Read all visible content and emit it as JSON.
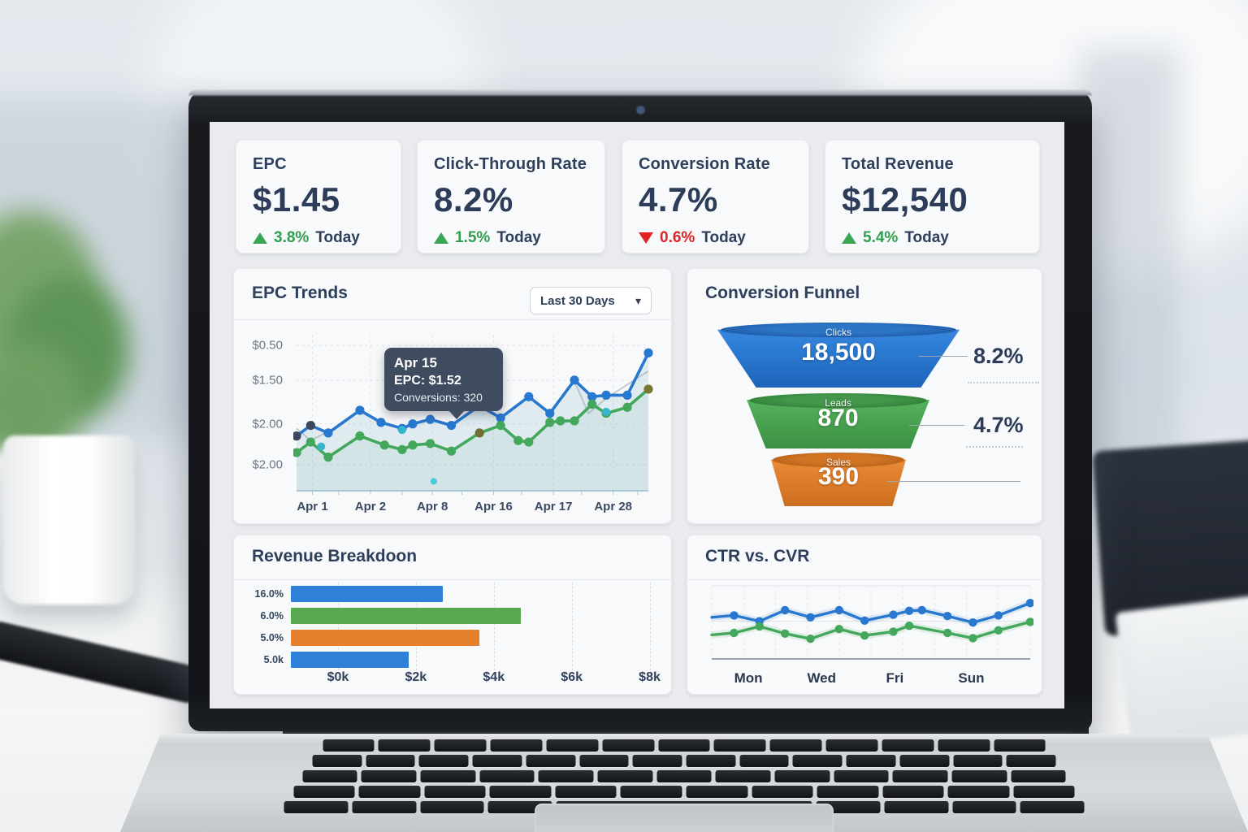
{
  "colors": {
    "accent_blue": "#2878d0",
    "accent_green": "#43a75c",
    "accent_orange": "#e5812d",
    "negative_red": "#e02424",
    "positive_green": "#2f9e4f",
    "navy_text": "#2e3f5c",
    "tooltip_bg": "#3f4b5e",
    "teal_dot": "#35b6cd"
  },
  "icons": {
    "chevron_down": "▾"
  },
  "screen": {
    "kpi_cards": [
      {
        "title": "EPC",
        "value": "$1.45",
        "delta": "3.8%",
        "direction": "up",
        "period": "Today"
      },
      {
        "title": "Click-Through Rate",
        "value": "8.2%",
        "delta": "1.5%",
        "direction": "up",
        "period": "Today"
      },
      {
        "title": "Conversion Rate",
        "value": "4.7%",
        "delta": "0.6%",
        "direction": "down",
        "period": "Today"
      },
      {
        "title": "Total Revenue",
        "value": "$12,540",
        "delta": "5.4%",
        "direction": "up",
        "period": "Today"
      }
    ],
    "epc_trends": {
      "title": "EPC Trends",
      "range_selector": "Last 30 Days",
      "tooltip": {
        "date": "Apr 15",
        "epc_line": "EPC: $1.52",
        "conversions_line": "Conversions: 320"
      }
    },
    "conversion_funnel": {
      "title": "Conversion Funnel",
      "stages": [
        {
          "label": "Clicks",
          "value": "18,500",
          "rate": "8.2%"
        },
        {
          "label": "Leads",
          "value": "870",
          "rate": "4.7%"
        },
        {
          "label": "Sales",
          "value": "390",
          "rate": ""
        }
      ]
    },
    "revenue_breakdown": {
      "title": "Revenue Breakdoon"
    },
    "ctr_cvr": {
      "title": "CTR vs. CVR"
    }
  },
  "chart_data": [
    {
      "type": "line",
      "title": "EPC Trends",
      "range": "Last 30 Days",
      "y_tick_labels_as_displayed": [
        "$0.50",
        "$1.50",
        "$2.00",
        "$2.00"
      ],
      "x_tick_labels": [
        "Apr 1",
        "Apr 2",
        "Apr 8",
        "Apr 16",
        "Apr 17",
        "Apr 28"
      ],
      "tooltip": {
        "date": "Apr 15",
        "epc": 1.52,
        "conversions": 320
      },
      "grid": true,
      "series": [
        {
          "name": "EPC",
          "color": "#2878d0",
          "area": "rgba(130,180,200,0.20)",
          "points_pct": [
            [
              0,
              67
            ],
            [
              4,
              60
            ],
            [
              9,
              65
            ],
            [
              18,
              50
            ],
            [
              24,
              58
            ],
            [
              30,
              62
            ],
            [
              33,
              59
            ],
            [
              38,
              56
            ],
            [
              44,
              60
            ],
            [
              52,
              47
            ],
            [
              58,
              55
            ],
            [
              66,
              41
            ],
            [
              72,
              52
            ],
            [
              79,
              30
            ],
            [
              84,
              41
            ],
            [
              88,
              40
            ],
            [
              94,
              40
            ],
            [
              100,
              12
            ]
          ],
          "dot_overrides": {
            "0": "#3b475f",
            "1": "#3b475f"
          }
        },
        {
          "name": "Conversions",
          "color": "#43a75c",
          "area": "rgba(110,185,145,0.12)",
          "points_pct": [
            [
              0,
              78
            ],
            [
              4,
              71
            ],
            [
              9,
              81
            ],
            [
              18,
              67
            ],
            [
              25,
              73
            ],
            [
              30,
              76
            ],
            [
              33,
              73
            ],
            [
              38,
              72
            ],
            [
              44,
              77
            ],
            [
              52,
              65
            ],
            [
              58,
              60
            ],
            [
              63,
              70
            ],
            [
              66,
              71
            ],
            [
              72,
              58
            ],
            [
              75,
              57
            ],
            [
              79,
              57
            ],
            [
              84,
              46
            ],
            [
              88,
              52
            ],
            [
              94,
              48
            ],
            [
              100,
              36
            ]
          ],
          "dot_overrides": {
            "9": "#6f7030",
            "19": "#77772f"
          }
        }
      ],
      "ghost_lines": [
        [
          [
            79,
            31
          ],
          [
            83,
            52
          ],
          [
            88,
            42
          ],
          [
            100,
            24
          ]
        ],
        [
          [
            0,
            62
          ],
          [
            4,
            70
          ],
          [
            9,
            64
          ]
        ]
      ],
      "accent_dots": [
        {
          "x": 7,
          "y": 74,
          "color": "#35b6cd",
          "r": 5
        },
        {
          "x": 30,
          "y": 63,
          "color": "#35b6cd",
          "r": 5
        },
        {
          "x": 88,
          "y": 51,
          "color": "#35b6cd",
          "r": 5
        },
        {
          "x": 39,
          "y": 97,
          "color": "#49c8e0",
          "r": 4
        }
      ]
    },
    {
      "type": "funnel",
      "title": "Conversion Funnel",
      "stages": [
        {
          "label": "Clicks",
          "value": 18500,
          "rate_pct": 8.2,
          "color": "#2b7ad2"
        },
        {
          "label": "Leads",
          "value": 870,
          "rate_pct": 4.7,
          "color": "#4ca552"
        },
        {
          "label": "Sales",
          "value": 390,
          "rate_pct": null,
          "color": "#e0802d"
        }
      ]
    },
    {
      "type": "bar",
      "orientation": "horizontal",
      "title": "Revenue Breakdoon",
      "categories": [
        "16.0%",
        "6.0%",
        "5.0%",
        "5.0k"
      ],
      "values_usd_k": [
        2.9,
        4.7,
        3.7,
        2.0
      ],
      "bar_width_pct": [
        42,
        63.5,
        52,
        32.5
      ],
      "bar_colors": [
        "#2e80d8",
        "#57a84e",
        "#e5812d",
        "#2e80d8"
      ],
      "xlim": [
        0,
        8
      ],
      "x_tick_labels": [
        "$0k",
        "$2k",
        "$4k",
        "$6k",
        "$8k"
      ],
      "grid": true
    },
    {
      "type": "line",
      "title": "CTR vs. CVR",
      "x_tick_labels": [
        "Mon",
        "Wed",
        "Fri",
        "Sun"
      ],
      "grid": true,
      "series": [
        {
          "name": "CTR",
          "color": "#2878d0",
          "points_pct": [
            [
              0,
              46
            ],
            [
              7,
              43
            ],
            [
              15,
              52
            ],
            [
              23,
              35
            ],
            [
              31,
              46
            ],
            [
              40,
              35
            ],
            [
              48,
              51
            ],
            [
              57,
              42
            ],
            [
              62,
              36
            ],
            [
              66,
              35
            ],
            [
              74,
              44
            ],
            [
              82,
              54
            ],
            [
              90,
              43
            ],
            [
              100,
              24
            ]
          ]
        },
        {
          "name": "CVR",
          "color": "#43a75c",
          "points_pct": [
            [
              0,
              73
            ],
            [
              7,
              70
            ],
            [
              15,
              60
            ],
            [
              23,
              71
            ],
            [
              31,
              79
            ],
            [
              40,
              64
            ],
            [
              48,
              74
            ],
            [
              57,
              68
            ],
            [
              62,
              59
            ],
            [
              74,
              70
            ],
            [
              82,
              78
            ],
            [
              90,
              66
            ],
            [
              100,
              53
            ]
          ]
        }
      ]
    }
  ]
}
